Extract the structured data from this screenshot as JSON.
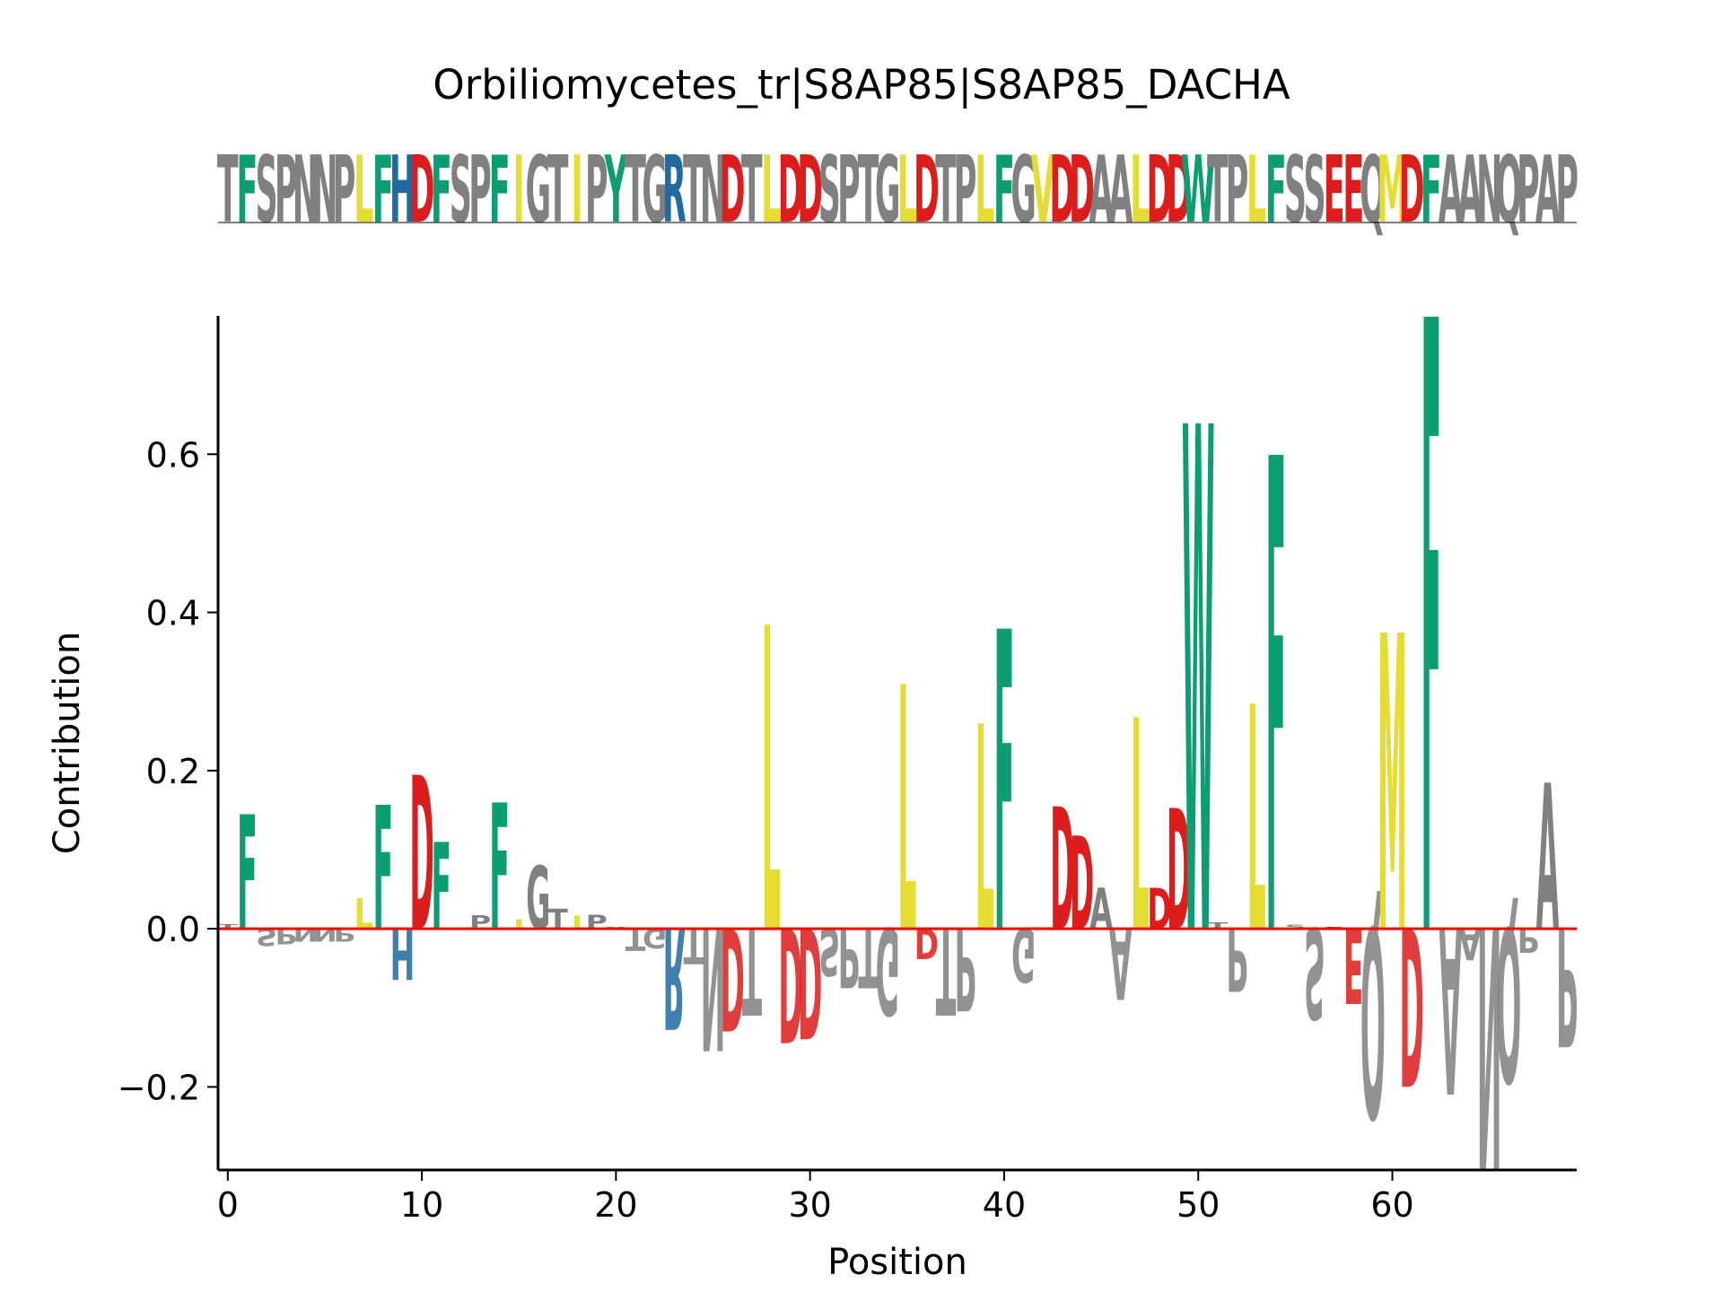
{
  "title": "Orbiliomycetes_tr|S8AP85|S8AP85_DACHA",
  "sequence": "TFSPNNPLFHDFSPFIGTIPYTGRTNDTLDDSPTGLDTPLFGVDDAALDDWTPLFSSEEQMDFAANQPAP",
  "colors": {
    "hydrophobic_yellow": "#e6dd33",
    "aromatic_green": "#0a9e72",
    "acidic_red": "#dd1c1c",
    "basic_blue": "#1f6aa0",
    "neutral_gray": "#808080",
    "baseline_red": "#ff0000"
  },
  "chart_data": {
    "type": "sequence-logo",
    "xlabel": "Position",
    "ylabel": "Contribution",
    "xlim": [
      -0.5,
      69.5
    ],
    "ylim": [
      -0.305,
      0.775
    ],
    "xticks": [
      0,
      10,
      20,
      30,
      40,
      50,
      60
    ],
    "yticks": [
      -0.2,
      0.0,
      0.2,
      0.4,
      0.6
    ],
    "ytick_labels": [
      "−0.2",
      "0.0",
      "0.2",
      "0.4",
      "0.6"
    ],
    "xtick_labels": [
      "0",
      "10",
      "20",
      "30",
      "40",
      "50",
      "60"
    ],
    "baseline": 0,
    "contributions": [
      {
        "pos": 0,
        "letter": "T",
        "value": 0.006
      },
      {
        "pos": 1,
        "letter": "F",
        "value": 0.145
      },
      {
        "pos": 2,
        "letter": "S",
        "value": -0.022
      },
      {
        "pos": 3,
        "letter": "P",
        "value": -0.02
      },
      {
        "pos": 4,
        "letter": "N",
        "value": -0.016
      },
      {
        "pos": 5,
        "letter": "N",
        "value": -0.016
      },
      {
        "pos": 6,
        "letter": "P",
        "value": -0.016
      },
      {
        "pos": 7,
        "letter": "L",
        "value": 0.038
      },
      {
        "pos": 8,
        "letter": "F",
        "value": 0.157
      },
      {
        "pos": 9,
        "letter": "H",
        "value": -0.065
      },
      {
        "pos": 10,
        "letter": "D",
        "value": 0.195
      },
      {
        "pos": 11,
        "letter": "F",
        "value": 0.11
      },
      {
        "pos": 12,
        "letter": "S",
        "value": 0.0
      },
      {
        "pos": 13,
        "letter": "P",
        "value": 0.017
      },
      {
        "pos": 14,
        "letter": "F",
        "value": 0.16
      },
      {
        "pos": 15,
        "letter": "I",
        "value": 0.012
      },
      {
        "pos": 16,
        "letter": "G",
        "value": 0.08
      },
      {
        "pos": 17,
        "letter": "T",
        "value": 0.025
      },
      {
        "pos": 18,
        "letter": "I",
        "value": 0.016
      },
      {
        "pos": 19,
        "letter": "P",
        "value": 0.018
      },
      {
        "pos": 20,
        "letter": "Y",
        "value": 0.002
      },
      {
        "pos": 21,
        "letter": "T",
        "value": -0.028
      },
      {
        "pos": 22,
        "letter": "G",
        "value": -0.025
      },
      {
        "pos": 23,
        "letter": "R",
        "value": -0.128
      },
      {
        "pos": 24,
        "letter": "T",
        "value": -0.045
      },
      {
        "pos": 25,
        "letter": "N",
        "value": -0.155
      },
      {
        "pos": 26,
        "letter": "D",
        "value": -0.13
      },
      {
        "pos": 27,
        "letter": "T",
        "value": -0.11
      },
      {
        "pos": 28,
        "letter": "L",
        "value": 0.385
      },
      {
        "pos": 29,
        "letter": "D",
        "value": -0.145
      },
      {
        "pos": 30,
        "letter": "D",
        "value": -0.14
      },
      {
        "pos": 31,
        "letter": "S",
        "value": -0.06
      },
      {
        "pos": 32,
        "letter": "P",
        "value": -0.075
      },
      {
        "pos": 33,
        "letter": "T",
        "value": -0.075
      },
      {
        "pos": 34,
        "letter": "G",
        "value": -0.11
      },
      {
        "pos": 35,
        "letter": "L",
        "value": 0.31
      },
      {
        "pos": 36,
        "letter": "D",
        "value": -0.038
      },
      {
        "pos": 37,
        "letter": "T",
        "value": -0.11
      },
      {
        "pos": 38,
        "letter": "P",
        "value": -0.105
      },
      {
        "pos": 39,
        "letter": "L",
        "value": 0.26
      },
      {
        "pos": 40,
        "letter": "F",
        "value": 0.38
      },
      {
        "pos": 41,
        "letter": "G",
        "value": -0.068
      },
      {
        "pos": 42,
        "letter": "V",
        "value": 0.002
      },
      {
        "pos": 43,
        "letter": "D",
        "value": 0.155
      },
      {
        "pos": 44,
        "letter": "D",
        "value": 0.118
      },
      {
        "pos": 45,
        "letter": "A",
        "value": 0.052
      },
      {
        "pos": 46,
        "letter": "A",
        "value": -0.09
      },
      {
        "pos": 47,
        "letter": "L",
        "value": 0.268
      },
      {
        "pos": 48,
        "letter": "D",
        "value": 0.052
      },
      {
        "pos": 49,
        "letter": "D",
        "value": 0.153
      },
      {
        "pos": 50,
        "letter": "W",
        "value": 0.64
      },
      {
        "pos": 51,
        "letter": "T",
        "value": 0.008
      },
      {
        "pos": 52,
        "letter": "P",
        "value": -0.08
      },
      {
        "pos": 53,
        "letter": "L",
        "value": 0.285
      },
      {
        "pos": 54,
        "letter": "F",
        "value": 0.6
      },
      {
        "pos": 55,
        "letter": "S",
        "value": 0.005
      },
      {
        "pos": 56,
        "letter": "S",
        "value": -0.115
      },
      {
        "pos": 57,
        "letter": "E",
        "value": 0.002
      },
      {
        "pos": 58,
        "letter": "E",
        "value": -0.095
      },
      {
        "pos": 59,
        "letter": "Q",
        "value": -0.24
      },
      {
        "pos": 60,
        "letter": "M",
        "value": 0.375
      },
      {
        "pos": 61,
        "letter": "D",
        "value": -0.2
      },
      {
        "pos": 62,
        "letter": "F",
        "value": 0.775
      },
      {
        "pos": 63,
        "letter": "A",
        "value": -0.21
      },
      {
        "pos": 64,
        "letter": "A",
        "value": -0.04
      },
      {
        "pos": 65,
        "letter": "N",
        "value": -0.305
      },
      {
        "pos": 66,
        "letter": "Q",
        "value": -0.195
      },
      {
        "pos": 67,
        "letter": "P",
        "value": -0.03
      },
      {
        "pos": 68,
        "letter": "A",
        "value": 0.185
      },
      {
        "pos": 69,
        "letter": "P",
        "value": -0.15
      }
    ]
  }
}
